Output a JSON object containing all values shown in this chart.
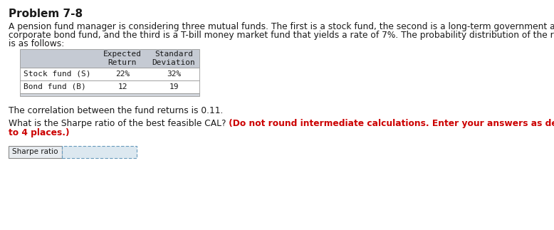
{
  "title": "Problem 7-8",
  "para_line1": "A pension fund manager is considering three mutual funds. The first is a stock fund, the second is a long-term government and",
  "para_line2": "corporate bond fund, and the third is a T-bill money market fund that yields a rate of 7%. The probability distribution of the risky funds",
  "para_line3": "is as follows:",
  "table_col1_header": "Expected\nReturn",
  "table_col2_header": "Standard\nDeviation",
  "table_rows": [
    [
      "Stock fund (S)",
      "22%",
      "32%"
    ],
    [
      "Bond fund (B)",
      "12",
      "19"
    ]
  ],
  "corr_text": "The correlation between the fund returns is 0.11.",
  "q_black": "What is the Sharpe ratio of the best feasible CAL?",
  "q_red_line1": " (Do not round intermediate calculations. Enter your answers as decimals rounded",
  "q_red_line2": "to 4 places.)",
  "label_text": "Sharpe ratio",
  "bg_color": "#ffffff",
  "table_header_bg": "#c5cad3",
  "table_footer_bg": "#d0d4db",
  "title_color": "#1a1a1a",
  "body_color": "#1a1a1a",
  "red_color": "#cc0000",
  "label_box_border": "#888888",
  "label_box_bg": "#e8ecf0",
  "input_box_border": "#6699bb",
  "input_box_bg": "#dce8f0",
  "font_size_title": 11,
  "font_size_body": 8.8,
  "font_size_table": 8.0
}
